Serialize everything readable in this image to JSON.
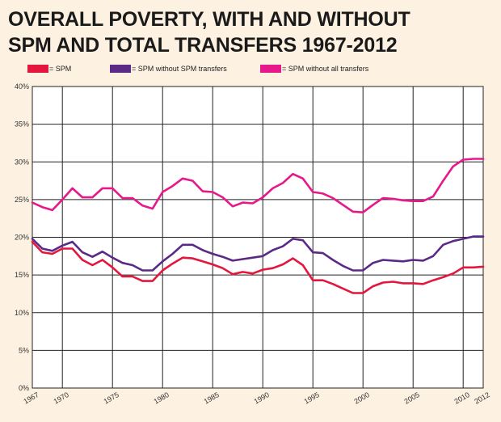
{
  "page": {
    "title_line1": "OVERALL POVERTY, WITH AND WITHOUT",
    "title_line2": "SPM AND TOTAL TRANSFERS 1967-2012"
  },
  "colors": {
    "background": "#fdf1e2",
    "plot_background": "#ffffff",
    "spm": "#e3173e",
    "spm_without_spm_transfers": "#5b2a86",
    "spm_without_all_transfers": "#e6188a"
  },
  "legend": [
    {
      "label": "= SPM",
      "color": "#e3173e"
    },
    {
      "label": "= SPM without SPM transfers",
      "color": "#5b2a86"
    },
    {
      "label": "= SPM without all transfers",
      "color": "#e6188a"
    }
  ],
  "chart_data": {
    "type": "line",
    "title": "OVERALL POVERTY, WITH AND WITHOUT SPM AND TOTAL TRANSFERS 1967-2012",
    "xlabel": "",
    "ylabel": "",
    "xlim": [
      1967,
      2012
    ],
    "ylim": [
      0,
      40
    ],
    "grid": true,
    "x": [
      1967,
      1968,
      1969,
      1970,
      1971,
      1972,
      1973,
      1974,
      1975,
      1976,
      1977,
      1978,
      1979,
      1980,
      1981,
      1982,
      1983,
      1984,
      1985,
      1986,
      1987,
      1988,
      1989,
      1990,
      1991,
      1992,
      1993,
      1994,
      1995,
      1996,
      1997,
      1998,
      1999,
      2000,
      2001,
      2002,
      2003,
      2004,
      2005,
      2006,
      2007,
      2008,
      2009,
      2010,
      2011,
      2012
    ],
    "x_ticks": [
      1967,
      1970,
      1975,
      1980,
      1985,
      1990,
      1995,
      2000,
      2005,
      2010,
      2012
    ],
    "x_tick_labels": [
      "1967",
      "1970",
      "1975",
      "1980",
      "1985",
      "1990",
      "1995",
      "2000",
      "2005",
      "2010",
      "2012"
    ],
    "y_ticks": [
      0,
      5,
      10,
      15,
      20,
      25,
      30,
      35,
      40
    ],
    "y_tick_labels": [
      "0%",
      "5%",
      "10%",
      "15%",
      "20%",
      "25%",
      "30%",
      "35%",
      "40%"
    ],
    "series": [
      {
        "name": "SPM",
        "color": "#e3173e",
        "values": [
          19.4,
          18.0,
          17.8,
          18.5,
          18.5,
          17.0,
          16.3,
          17.0,
          16.0,
          14.8,
          14.8,
          14.2,
          14.2,
          15.6,
          16.5,
          17.3,
          17.2,
          16.8,
          16.4,
          15.9,
          15.1,
          15.4,
          15.2,
          15.7,
          15.9,
          16.4,
          17.2,
          16.3,
          14.3,
          14.3,
          13.8,
          13.2,
          12.6,
          12.6,
          13.5,
          14.0,
          14.1,
          13.9,
          13.9,
          13.8,
          14.3,
          14.7,
          15.2,
          16.0,
          16.0,
          16.1
        ]
      },
      {
        "name": "SPM without SPM transfers",
        "color": "#5b2a86",
        "values": [
          19.8,
          18.5,
          18.2,
          18.9,
          19.4,
          18.0,
          17.4,
          18.1,
          17.3,
          16.6,
          16.3,
          15.6,
          15.6,
          16.8,
          17.8,
          19.0,
          19.0,
          18.3,
          17.8,
          17.4,
          16.9,
          17.1,
          17.3,
          17.5,
          18.3,
          18.8,
          19.8,
          19.6,
          18.0,
          17.9,
          17.0,
          16.2,
          15.6,
          15.6,
          16.6,
          17.0,
          16.9,
          16.8,
          17.0,
          16.9,
          17.5,
          19.0,
          19.5,
          19.8,
          20.1,
          20.1
        ]
      },
      {
        "name": "SPM without all transfers",
        "color": "#e6188a",
        "values": [
          24.6,
          24.0,
          23.6,
          25.0,
          26.5,
          25.3,
          25.3,
          26.5,
          26.5,
          25.2,
          25.2,
          24.2,
          23.8,
          26.0,
          26.8,
          27.8,
          27.5,
          26.1,
          26.0,
          25.3,
          24.1,
          24.6,
          24.5,
          25.3,
          26.5,
          27.2,
          28.4,
          27.8,
          26.0,
          25.8,
          25.2,
          24.3,
          23.4,
          23.3,
          24.3,
          25.2,
          25.1,
          24.9,
          24.8,
          24.8,
          25.4,
          27.5,
          29.4,
          30.3,
          30.4,
          30.4
        ]
      }
    ]
  }
}
